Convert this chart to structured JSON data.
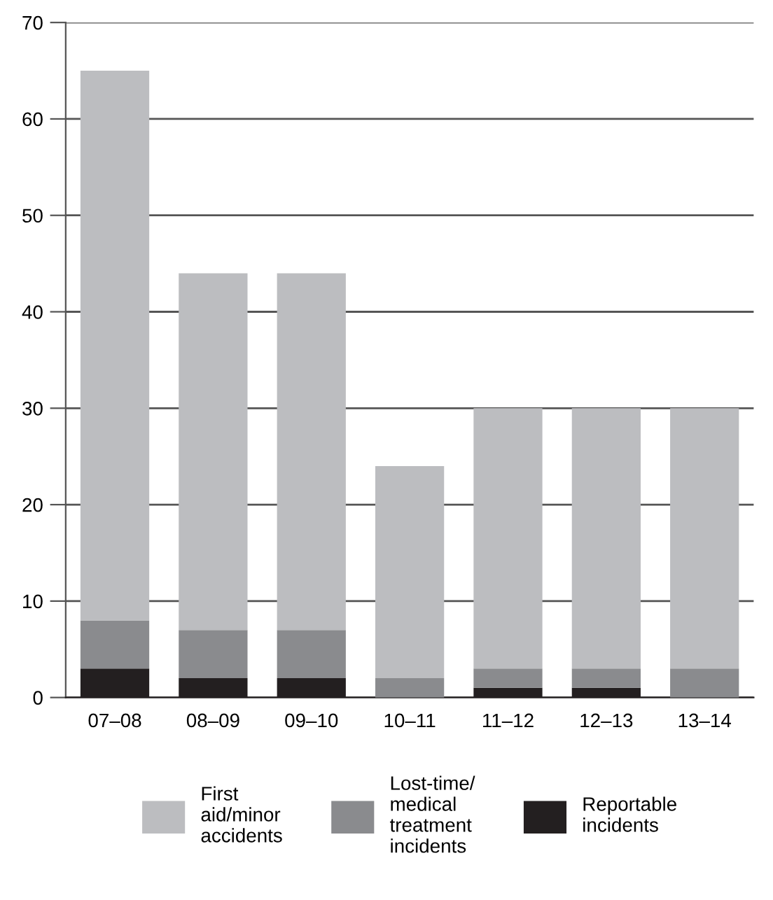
{
  "chart_data": {
    "type": "bar",
    "stacked": true,
    "categories": [
      "07–08",
      "08–09",
      "09–10",
      "10–11",
      "11–12",
      "12–13",
      "13–14"
    ],
    "series": [
      {
        "name": "Reportable incidents",
        "color": "#231f20",
        "values": [
          3,
          2,
          2,
          0,
          1,
          1,
          0
        ]
      },
      {
        "name": "Lost-time/ medical treatment incidents",
        "color": "#8a8b8e",
        "values": [
          5,
          5,
          5,
          2,
          2,
          2,
          3
        ]
      },
      {
        "name": "First aid/minor accidents",
        "color": "#bcbdc0",
        "values": [
          57,
          37,
          37,
          22,
          27,
          27,
          27
        ]
      }
    ],
    "ylim": [
      0,
      70
    ],
    "yticks": [
      0,
      10,
      20,
      30,
      40,
      50,
      60,
      70
    ],
    "grid": "y",
    "legend": "bottom"
  }
}
